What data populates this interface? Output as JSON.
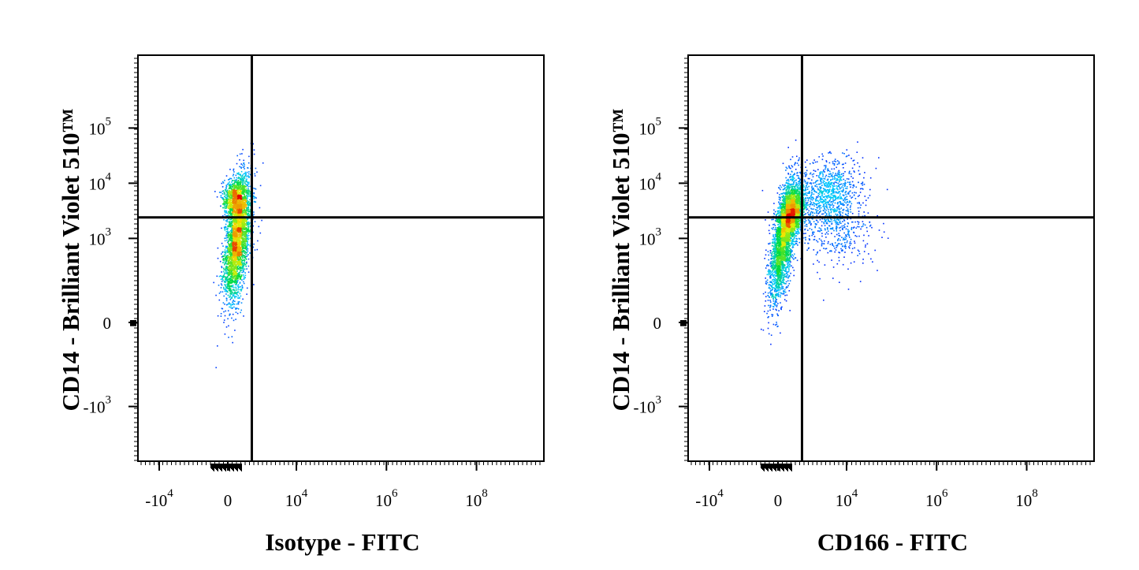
{
  "chart_data": [
    {
      "type": "scatter",
      "title": "",
      "xlabel": "Isotype - FITC",
      "ylabel": "CD14 - Brilliant Violet 510™",
      "xscale": "biexponential",
      "yscale": "biexponential",
      "x_ticks": [
        {
          "base": "-10",
          "exp": "4"
        },
        {
          "base": "0",
          "exp": ""
        },
        {
          "base": "10",
          "exp": "4"
        },
        {
          "base": "10",
          "exp": "6"
        },
        {
          "base": "10",
          "exp": "8"
        }
      ],
      "y_ticks": [
        {
          "base": "10",
          "exp": "5"
        },
        {
          "base": "10",
          "exp": "4"
        },
        {
          "base": "10",
          "exp": "3"
        },
        {
          "base": "0",
          "exp": ""
        },
        {
          "base": "-10",
          "exp": "3"
        }
      ],
      "quadrant_gate": {
        "x": 1600,
        "y": 2400
      },
      "colormap": "density (blue-cyan-green-yellow-red)",
      "populations": [
        {
          "x_center": 600,
          "y_center": 1000,
          "x_spread": 450,
          "y_spread": 0.55,
          "count": 3000,
          "corr": 0.5
        },
        {
          "x_center": 400,
          "y_center": 5500,
          "x_spread": 380,
          "y_spread": 0.17,
          "count": 800,
          "corr": 0.1
        }
      ]
    },
    {
      "type": "scatter",
      "title": "",
      "xlabel": "CD166 - FITC",
      "ylabel": "CD14 - Brilliant Violet 510™",
      "xscale": "biexponential",
      "yscale": "biexponential",
      "x_ticks": [
        {
          "base": "-10",
          "exp": "4"
        },
        {
          "base": "0",
          "exp": ""
        },
        {
          "base": "10",
          "exp": "4"
        },
        {
          "base": "10",
          "exp": "6"
        },
        {
          "base": "10",
          "exp": "8"
        }
      ],
      "y_ticks": [
        {
          "base": "10",
          "exp": "5"
        },
        {
          "base": "10",
          "exp": "4"
        },
        {
          "base": "10",
          "exp": "3"
        },
        {
          "base": "0",
          "exp": ""
        },
        {
          "base": "-10",
          "exp": "3"
        }
      ],
      "quadrant_gate": {
        "x": 1600,
        "y": 2400
      },
      "colormap": "density (blue-cyan-green-yellow-red)",
      "populations": [
        {
          "x_center": 300,
          "y_center": 900,
          "x_spread": 450,
          "y_spread": 0.55,
          "count": 2500,
          "corr": 0.6
        },
        {
          "x_center": 900,
          "y_center": 3000,
          "x_spread": 400,
          "y_spread": 0.22,
          "count": 2000,
          "corr": 0.3
        },
        {
          "x_center": 4000,
          "y_center": 7000,
          "x_spread": 0.35,
          "y_spread": 0.3,
          "count": 800,
          "corr": 0.2
        },
        {
          "x_center": 6000,
          "y_center": 1500,
          "x_spread": 0.4,
          "y_spread": 0.35,
          "count": 400,
          "corr": 0
        }
      ]
    }
  ]
}
